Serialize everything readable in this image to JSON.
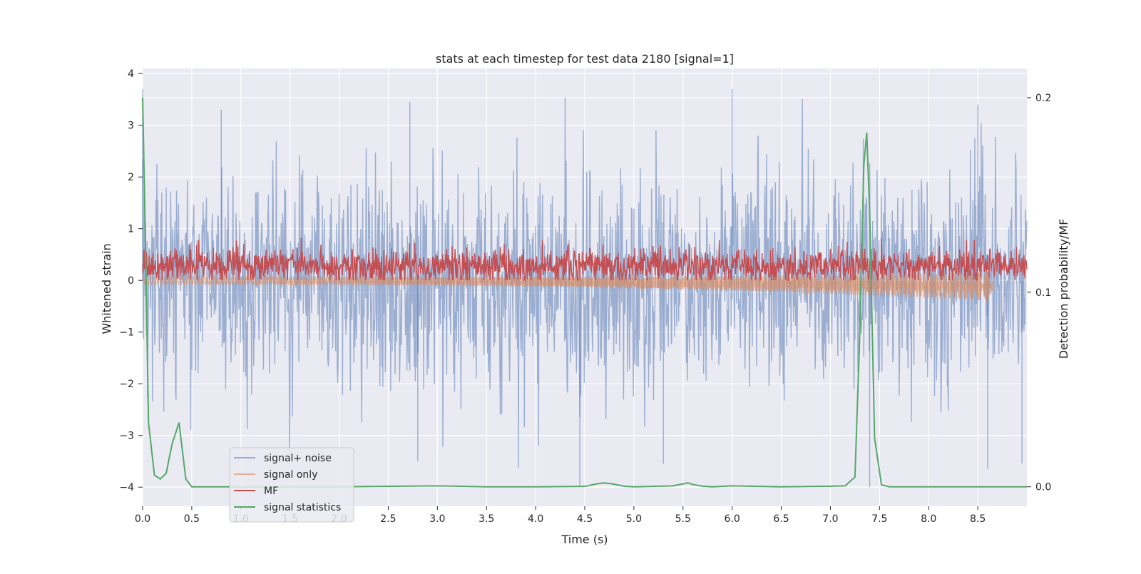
{
  "chart_data": {
    "type": "line",
    "title": "stats at each timestep for test data 2180 [signal=1]",
    "xlabel": "Time (s)",
    "ylabel_left": "Whitened strain",
    "ylabel_right": "Detection probability/MF",
    "xlim": [
      0.0,
      9.0
    ],
    "ylim_left": [
      -4.37,
      4.1
    ],
    "ylim_right": [
      -0.01,
      0.215
    ],
    "x_ticks": [
      0.0,
      0.5,
      1.0,
      1.5,
      2.0,
      2.5,
      3.0,
      3.5,
      4.0,
      4.5,
      5.0,
      5.5,
      6.0,
      6.5,
      7.0,
      7.5,
      8.0,
      8.5
    ],
    "x_tick_labels": [
      "0.0",
      "0.5",
      "1.0",
      "1.5",
      "2.0",
      "2.5",
      "3.0",
      "3.5",
      "4.0",
      "4.5",
      "5.0",
      "5.5",
      "6.0",
      "6.5",
      "7.0",
      "7.5",
      "8.0",
      "8.5"
    ],
    "y_left_ticks": [
      4,
      3,
      2,
      1,
      0,
      -1,
      -2,
      -3,
      -4
    ],
    "y_left_tick_labels": [
      "4",
      "3",
      "2",
      "1",
      "0",
      "−1",
      "−2",
      "−3",
      "−4"
    ],
    "y_right_ticks": [
      0.2,
      0.1,
      0.0
    ],
    "y_right_tick_labels": [
      "0.2",
      "0.1",
      "0.0"
    ],
    "grid": true,
    "legend_position": "lower-left",
    "background": "#eaeaf2",
    "series": [
      {
        "name": "signal+ noise",
        "axis": "left",
        "color": "#4c72b0",
        "opacity": 0.5,
        "kind": "noisy-trace",
        "approx_std": 1.05,
        "approx_range": [
          -4.0,
          3.7
        ],
        "notable_peaks": [
          {
            "x": 0.0,
            "y": 3.7
          },
          {
            "x": 0.8,
            "y": 3.3
          },
          {
            "x": 2.72,
            "y": 3.45
          },
          {
            "x": 6.0,
            "y": 3.7
          },
          {
            "x": 8.5,
            "y": 3.4
          },
          {
            "x": 4.45,
            "y": -4.0
          },
          {
            "x": 7.4,
            "y": -4.0
          },
          {
            "x": 2.8,
            "y": -3.5
          },
          {
            "x": 5.3,
            "y": -3.55
          },
          {
            "x": 8.6,
            "y": -3.65
          },
          {
            "x": 8.95,
            "y": -3.55
          }
        ]
      },
      {
        "name": "signal only",
        "axis": "left",
        "color": "#dd8452",
        "opacity": 0.6,
        "kind": "chirp",
        "x_start": 0.0,
        "x_end": 8.65,
        "start_amplitude": 0.08,
        "end_amplitude": 0.28,
        "end_offset": -0.12
      },
      {
        "name": "MF",
        "axis": "left",
        "color": "#c44e52",
        "kind": "noisy-trace",
        "approx_mean": 0.28,
        "approx_range": [
          0.0,
          1.0
        ]
      },
      {
        "name": "signal statistics",
        "axis": "right",
        "color": "#55a868",
        "kind": "line",
        "x": [
          0.0,
          0.02,
          0.06,
          0.12,
          0.18,
          0.24,
          0.3,
          0.37,
          0.44,
          0.5,
          1.0,
          2.0,
          3.0,
          3.5,
          4.0,
          4.5,
          4.62,
          4.7,
          4.78,
          4.9,
          5.0,
          5.4,
          5.5,
          5.55,
          5.6,
          5.7,
          5.8,
          6.0,
          6.5,
          7.0,
          7.15,
          7.25,
          7.3,
          7.34,
          7.37,
          7.4,
          7.45,
          7.52,
          7.6,
          8.0,
          8.5,
          9.0
        ],
        "y": [
          0.2,
          0.15,
          0.033,
          0.006,
          0.004,
          0.007,
          0.022,
          0.033,
          0.004,
          0.0,
          0.0,
          0.0,
          0.0005,
          0.0,
          0.0,
          0.0002,
          0.0015,
          0.002,
          0.0015,
          0.0003,
          0.0,
          0.0005,
          0.0015,
          0.002,
          0.0012,
          0.0003,
          0.0,
          0.0005,
          0.0,
          0.0003,
          0.0005,
          0.005,
          0.08,
          0.165,
          0.182,
          0.14,
          0.025,
          0.001,
          0.0,
          0.0,
          0.0,
          0.0
        ]
      }
    ]
  }
}
